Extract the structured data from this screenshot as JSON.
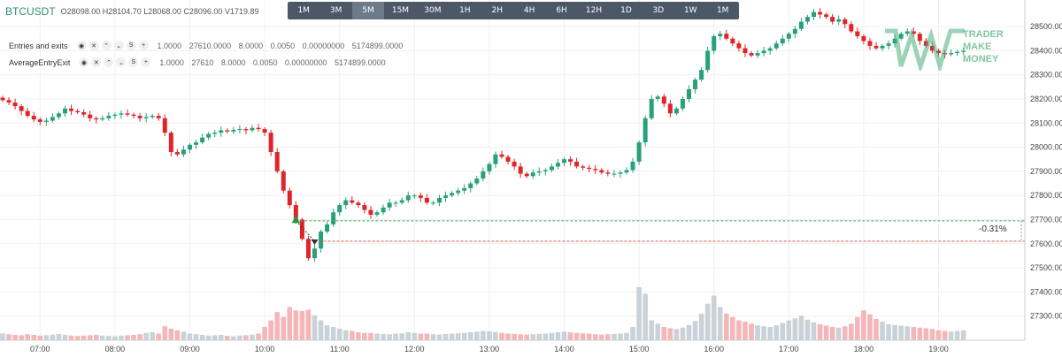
{
  "timeframes": [
    "1M",
    "3M",
    "5M",
    "15M",
    "30M",
    "1H",
    "2H",
    "4H",
    "6H",
    "12H",
    "1D",
    "3D",
    "1W",
    "1M"
  ],
  "active_timeframe": "5M",
  "symbol": "BTCUSDT",
  "ohlc": {
    "open": "O28098.00",
    "high": "H28104.70",
    "low": "L28068.00",
    "close": "C28096.00",
    "volume": "V1719.89"
  },
  "indicators": [
    {
      "name": "Entries and exits",
      "values": "1.0000 27610.0000 8.0000 0.0050 0.00000000 5174899.0000"
    },
    {
      "name": "AverageEntryExit",
      "values": "1.0000 27610 8.0000 0.0050 0.00000000 5174899.0000"
    }
  ],
  "indicator_icons": [
    "eye-icon",
    "close-icon",
    "chevron-up-icon",
    "chevron-down-icon",
    "settings-s-icon",
    "plus-icon"
  ],
  "pct_change_label": "-0.31%",
  "watermark_text": [
    "TRADER",
    "MAKE",
    "MONEY"
  ],
  "colors": {
    "up": "#26a17b",
    "down": "#e0252a",
    "vol_up": "#c8d2d8",
    "vol_down": "#f4b6b8",
    "entry_line": "#3aa85a",
    "exit_line": "#d9534f"
  },
  "chart_data": {
    "type": "candlestick",
    "ylim": [
      27200,
      28610
    ],
    "y_ticks": [
      27300,
      27400,
      27500,
      27600,
      27700,
      27800,
      27900,
      28000,
      28100,
      28200,
      28300,
      28400,
      28500
    ],
    "y_tick_labels": [
      "27300.00",
      "27400.00",
      "27500.00",
      "27600.00",
      "27700.00",
      "27800.00",
      "27900.00",
      "28000.00",
      "28100.00",
      "28200.00",
      "28300.00",
      "28400.00",
      "28500.00"
    ],
    "x_tick_labels": [
      "07:00",
      "08:00",
      "09:00",
      "10:00",
      "11:00",
      "12:00",
      "13:00",
      "14:00",
      "15:00",
      "16:00",
      "17:00",
      "18:00",
      "19:00"
    ],
    "x_tick_candle_index": [
      6,
      18,
      30,
      42,
      54,
      66,
      78,
      90,
      102,
      114,
      126,
      138,
      150
    ],
    "entry_price": 27695,
    "exit_price": 27610,
    "pct_change": -0.31,
    "close": [
      28195,
      28185,
      28170,
      28150,
      28130,
      28115,
      28105,
      28110,
      28125,
      28140,
      28160,
      28150,
      28145,
      28135,
      28120,
      28115,
      28120,
      28130,
      28135,
      28140,
      28135,
      28130,
      28120,
      28125,
      28130,
      28120,
      28060,
      27980,
      27970,
      27990,
      28010,
      28020,
      28040,
      28055,
      28060,
      28070,
      28065,
      28072,
      28075,
      28070,
      28080,
      28075,
      28060,
      27980,
      27900,
      27820,
      27760,
      27700,
      27620,
      27540,
      27580,
      27650,
      27680,
      27730,
      27760,
      27780,
      27770,
      27760,
      27740,
      27720,
      27730,
      27750,
      27770,
      27770,
      27780,
      27800,
      27800,
      27790,
      27770,
      27770,
      27790,
      27800,
      27810,
      27820,
      27830,
      27850,
      27870,
      27900,
      27930,
      27970,
      27960,
      27940,
      27920,
      27890,
      27880,
      27895,
      27900,
      27905,
      27920,
      27935,
      27950,
      27940,
      27920,
      27915,
      27910,
      27905,
      27895,
      27890,
      27890,
      27895,
      27905,
      27940,
      28020,
      28120,
      28200,
      28210,
      28180,
      28140,
      28160,
      28200,
      28240,
      28280,
      28320,
      28400,
      28460,
      28470,
      28450,
      28430,
      28410,
      28390,
      28380,
      28390,
      28400,
      28410,
      28430,
      28450,
      28470,
      28490,
      28520,
      28540,
      28560,
      28550,
      28540,
      28520,
      28530,
      28510,
      28480,
      28460,
      28440,
      28420,
      28410,
      28420,
      28430,
      28450,
      28470,
      28480,
      28470,
      28440,
      28420,
      28400,
      28390,
      28385,
      28390,
      28395,
      28400
    ],
    "volume": [
      20,
      18,
      16,
      15,
      18,
      16,
      14,
      15,
      17,
      19,
      16,
      14,
      13,
      14,
      15,
      16,
      14,
      13,
      12,
      14,
      15,
      16,
      18,
      22,
      24,
      20,
      42,
      35,
      30,
      26,
      20,
      18,
      16,
      14,
      15,
      16,
      13,
      12,
      14,
      15,
      17,
      20,
      40,
      60,
      85,
      70,
      100,
      90,
      88,
      92,
      75,
      60,
      45,
      40,
      35,
      30,
      28,
      24,
      22,
      22,
      20,
      19,
      18,
      20,
      21,
      24,
      22,
      20,
      20,
      18,
      17,
      19,
      20,
      21,
      22,
      24,
      26,
      28,
      27,
      25,
      22,
      20,
      19,
      18,
      17,
      18,
      19,
      20,
      22,
      24,
      26,
      24,
      22,
      21,
      20,
      18,
      17,
      18,
      19,
      20,
      22,
      40,
      160,
      140,
      60,
      50,
      40,
      36,
      34,
      38,
      46,
      58,
      80,
      110,
      135,
      100,
      80,
      70,
      60,
      56,
      50,
      45,
      42,
      40,
      45,
      52,
      60,
      66,
      74,
      62,
      54,
      48,
      44,
      40,
      38,
      42,
      50,
      70,
      90,
      78,
      64,
      56,
      48,
      46,
      44,
      42,
      40,
      38,
      36,
      34,
      30,
      28,
      26,
      28,
      30
    ]
  }
}
